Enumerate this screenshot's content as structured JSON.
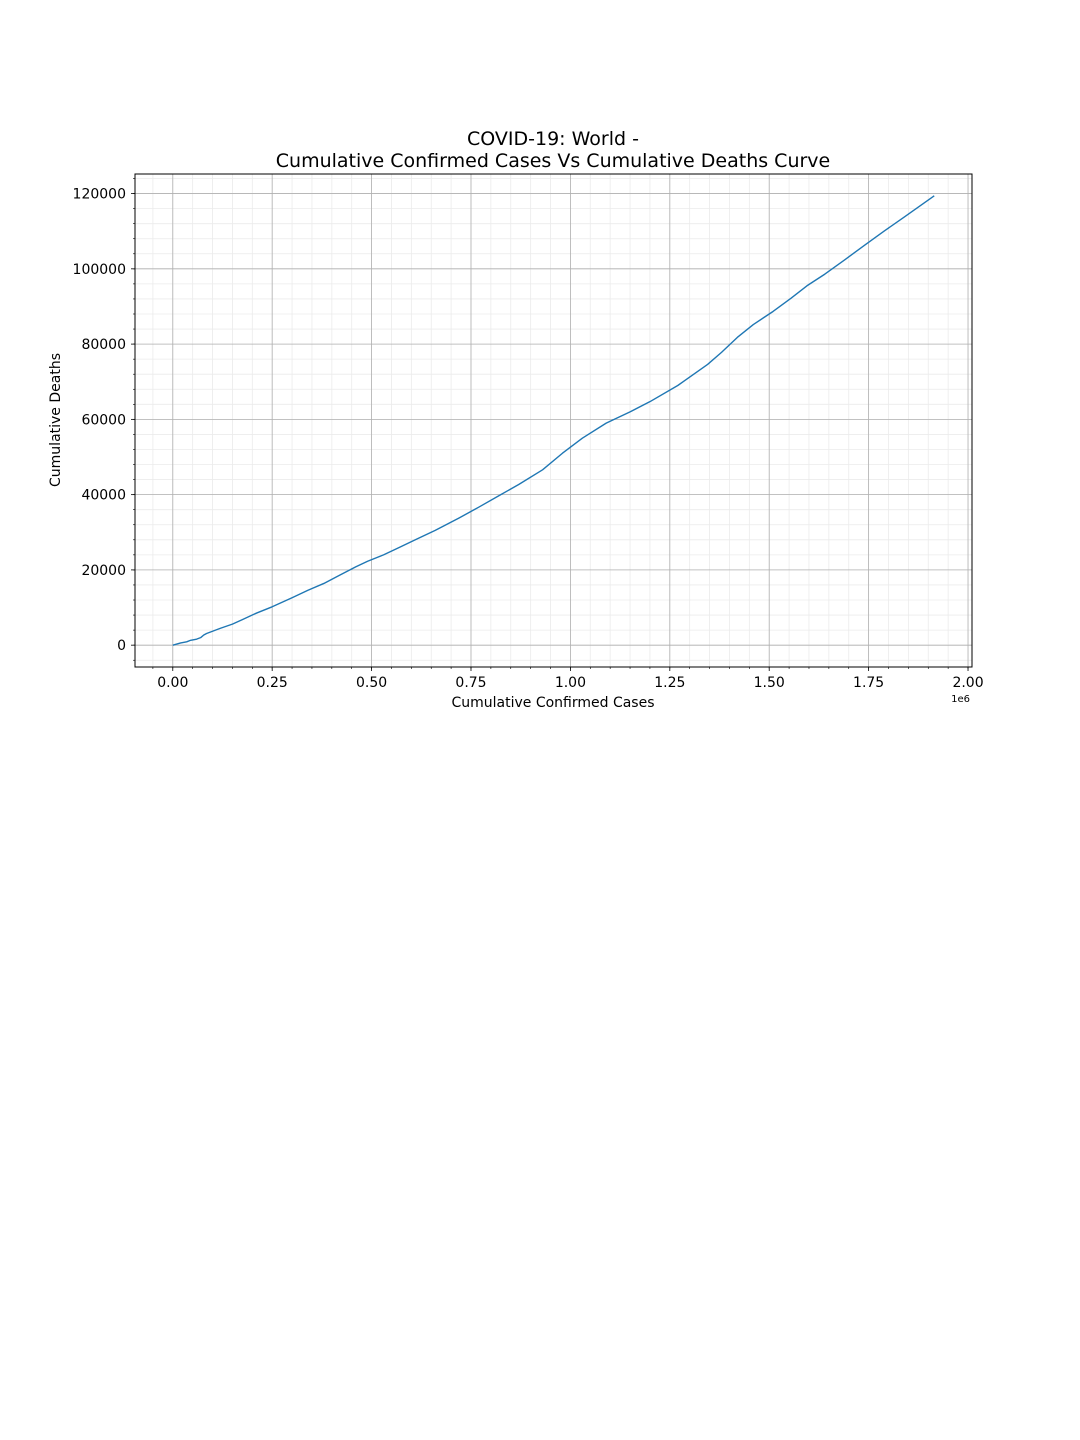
{
  "chart_data": {
    "type": "line",
    "title_line1": "COVID-19: World -",
    "title_line2": "Cumulative Confirmed Cases Vs Cumulative Deaths Curve",
    "xlabel": "Cumulative Confirmed Cases",
    "ylabel": "Cumulative Deaths",
    "x_offset_label": "1e6",
    "xlim": [
      -0.095,
      2.01
    ],
    "ylim": [
      -5800,
      125200
    ],
    "x_ticks": [
      0.0,
      0.25,
      0.5,
      0.75,
      1.0,
      1.25,
      1.5,
      1.75,
      2.0
    ],
    "x_tick_labels": [
      "0.00",
      "0.25",
      "0.50",
      "0.75",
      "1.00",
      "1.25",
      "1.50",
      "1.75",
      "2.00"
    ],
    "y_ticks": [
      0,
      20000,
      40000,
      60000,
      80000,
      100000,
      120000
    ],
    "y_tick_labels": [
      "0",
      "20000",
      "40000",
      "60000",
      "80000",
      "100000",
      "120000"
    ],
    "grid": {
      "major": true,
      "minor": true
    },
    "line_color": "#1f77b4",
    "series": [
      {
        "x": [
          0.0,
          0.02,
          0.035,
          0.045,
          0.06,
          0.07,
          0.078,
          0.085,
          0.1,
          0.12,
          0.15,
          0.175,
          0.21,
          0.25,
          0.3,
          0.34,
          0.38,
          0.42,
          0.46,
          0.49,
          0.53,
          0.57,
          0.61,
          0.66,
          0.72,
          0.77,
          0.82,
          0.87,
          0.93,
          0.98,
          1.03,
          1.09,
          1.15,
          1.2,
          1.27,
          1.345,
          1.38,
          1.42,
          1.46,
          1.51,
          1.555,
          1.595,
          1.64,
          1.69,
          1.74,
          1.79,
          1.84,
          1.915
        ],
        "y": [
          0,
          600,
          900,
          1300,
          1600,
          2000,
          2700,
          3100,
          3700,
          4500,
          5600,
          6800,
          8500,
          10200,
          12600,
          14600,
          16400,
          18600,
          20800,
          22300,
          24000,
          26000,
          28000,
          30500,
          33800,
          36700,
          39700,
          42700,
          46600,
          51000,
          55000,
          59000,
          62000,
          64700,
          69000,
          74600,
          77800,
          81800,
          85200,
          88700,
          92200,
          95500,
          98600,
          102400,
          106300,
          110100,
          113800,
          119400
        ]
      }
    ]
  }
}
